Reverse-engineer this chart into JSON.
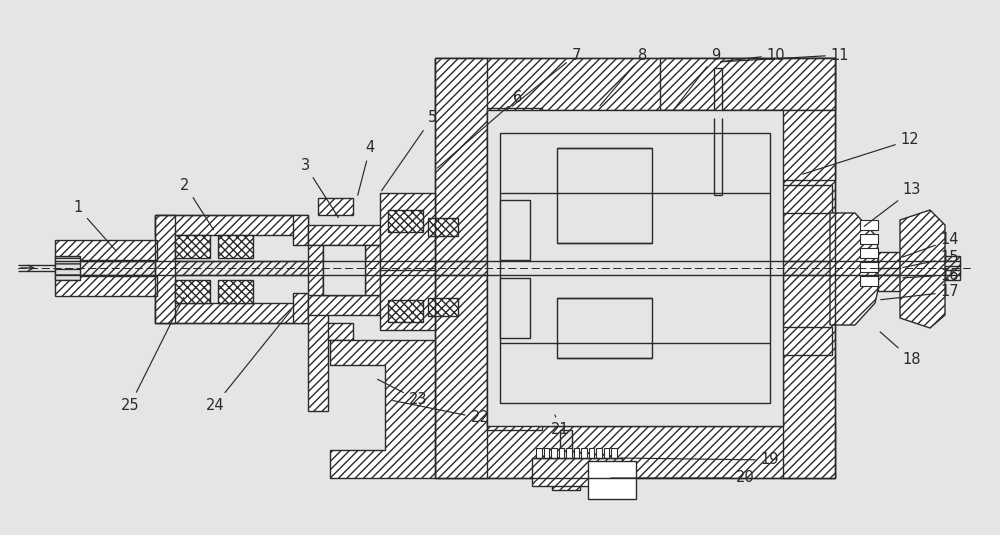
{
  "bg_color": "#e5e5e5",
  "lc": "#2a2a2a",
  "fig_width": 10.0,
  "fig_height": 5.35,
  "label_fontsize": 10.5,
  "labels_info": [
    [
      1,
      78,
      208,
      118,
      253
    ],
    [
      2,
      185,
      185,
      215,
      232
    ],
    [
      3,
      305,
      165,
      340,
      220
    ],
    [
      4,
      370,
      148,
      357,
      198
    ],
    [
      5,
      432,
      118,
      380,
      193
    ],
    [
      6,
      518,
      98,
      435,
      170
    ],
    [
      7,
      576,
      55,
      510,
      108
    ],
    [
      8,
      643,
      55,
      598,
      108
    ],
    [
      9,
      716,
      55,
      672,
      112
    ],
    [
      10,
      776,
      55,
      718,
      62
    ],
    [
      11,
      840,
      55,
      718,
      62
    ],
    [
      12,
      910,
      140,
      800,
      175
    ],
    [
      13,
      912,
      190,
      862,
      228
    ],
    [
      14,
      950,
      240,
      900,
      258
    ],
    [
      15,
      950,
      258,
      900,
      268
    ],
    [
      16,
      950,
      275,
      900,
      278
    ],
    [
      17,
      950,
      292,
      878,
      300
    ],
    [
      18,
      912,
      360,
      878,
      330
    ],
    [
      19,
      770,
      460,
      618,
      458
    ],
    [
      20,
      745,
      478,
      608,
      478
    ],
    [
      21,
      560,
      430,
      555,
      415
    ],
    [
      22,
      480,
      418,
      390,
      400
    ],
    [
      23,
      418,
      400,
      375,
      378
    ],
    [
      24,
      215,
      405,
      293,
      308
    ],
    [
      25,
      130,
      405,
      185,
      295
    ]
  ]
}
